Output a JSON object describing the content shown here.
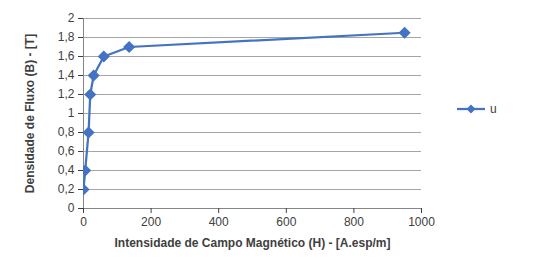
{
  "chart_data": {
    "type": "line",
    "xlabel": "Intensidade de Campo Magnético (H) - [A.esp/m]",
    "ylabel": "Densidade de Fluxo (B) - [T]",
    "x": [
      0,
      5,
      15,
      20,
      30,
      60,
      135,
      950
    ],
    "series": [
      {
        "name": "u",
        "color": "#4472c4",
        "marker": "diamond",
        "values": [
          0.2,
          0.4,
          0.8,
          1.2,
          1.4,
          1.6,
          1.7,
          1.85
        ]
      }
    ],
    "xlim": [
      0,
      1000
    ],
    "xticks": [
      0,
      200,
      400,
      600,
      800,
      1000
    ],
    "ylim": [
      0,
      2
    ],
    "yticks": [
      0,
      {
        "value": 0.2,
        "label": "0,2"
      },
      {
        "value": 0.4,
        "label": "0,4"
      },
      {
        "value": 0.6,
        "label": "0,6"
      },
      {
        "value": 0.8,
        "label": "0,8"
      },
      1,
      {
        "value": 1.2,
        "label": "1,2"
      },
      {
        "value": 1.4,
        "label": "1,4"
      },
      {
        "value": 1.6,
        "label": "1,6"
      },
      {
        "value": 1.8,
        "label": "1,8"
      },
      2
    ],
    "grid": true,
    "legend": "right"
  }
}
